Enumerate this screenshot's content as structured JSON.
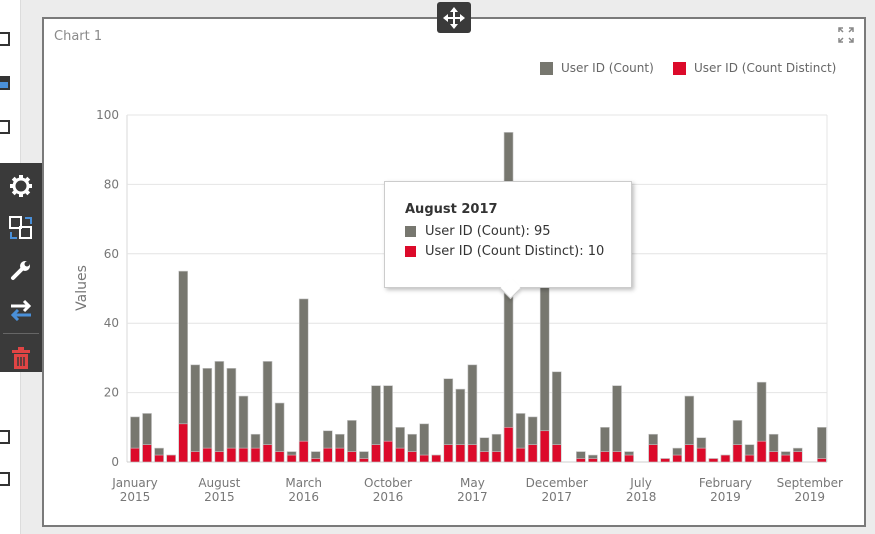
{
  "chart_title": "Chart 1",
  "colors": {
    "count": "#77776f",
    "distinct": "#dc0a2a"
  },
  "chart_data": {
    "type": "bar",
    "title": "Chart 1",
    "xlabel": "",
    "ylabel": "Values",
    "ylim": [
      0,
      100
    ],
    "yticks": [
      "0",
      "20",
      "40",
      "60",
      "80",
      "100"
    ],
    "ytick_values": [
      0,
      20,
      40,
      60,
      80,
      100
    ],
    "grid": true,
    "legend_position": "top-right",
    "xtick_labels": [
      {
        "month_index": 0,
        "line1": "January",
        "line2": "2015"
      },
      {
        "month_index": 7,
        "line1": "August",
        "line2": "2015"
      },
      {
        "month_index": 14,
        "line1": "March",
        "line2": "2016"
      },
      {
        "month_index": 21,
        "line1": "October",
        "line2": "2016"
      },
      {
        "month_index": 28,
        "line1": "May",
        "line2": "2017"
      },
      {
        "month_index": 35,
        "line1": "December",
        "line2": "2017"
      },
      {
        "month_index": 42,
        "line1": "July",
        "line2": "2018"
      },
      {
        "month_index": 49,
        "line1": "February",
        "line2": "2019"
      },
      {
        "month_index": 56,
        "line1": "September",
        "line2": "2019"
      }
    ],
    "categories": [
      "2015-01",
      "2015-02",
      "2015-03",
      "2015-04",
      "2015-05",
      "2015-06",
      "2015-07",
      "2015-08",
      "2015-09",
      "2015-10",
      "2015-11",
      "2015-12",
      "2016-01",
      "2016-02",
      "2016-03",
      "2016-04",
      "2016-05",
      "2016-06",
      "2016-07",
      "2016-08",
      "2016-09",
      "2016-10",
      "2016-11",
      "2016-12",
      "2017-01",
      "2017-02",
      "2017-03",
      "2017-04",
      "2017-05",
      "2017-06",
      "2017-07",
      "2017-08",
      "2017-09",
      "2017-10",
      "2017-11",
      "2017-12",
      "2018-01",
      "2018-02",
      "2018-03",
      "2018-04",
      "2018-05",
      "2018-06",
      "2018-07",
      "2018-08",
      "2018-09",
      "2018-10",
      "2018-11",
      "2018-12",
      "2019-01",
      "2019-02",
      "2019-03",
      "2019-04",
      "2019-05",
      "2019-06",
      "2019-07",
      "2019-08",
      "2019-09",
      "2019-10"
    ],
    "series": [
      {
        "name": "User ID (Count)",
        "values": [
          13,
          14,
          4,
          2,
          55,
          28,
          27,
          29,
          27,
          19,
          8,
          29,
          17,
          3,
          47,
          3,
          9,
          8,
          12,
          3,
          22,
          22,
          10,
          8,
          11,
          2,
          24,
          21,
          28,
          7,
          8,
          95,
          14,
          13,
          58,
          26,
          null,
          3,
          2,
          10,
          22,
          3,
          null,
          8,
          1,
          4,
          19,
          7,
          1,
          2,
          12,
          5,
          23,
          8,
          3,
          4,
          null,
          10
        ]
      },
      {
        "name": "User ID (Count Distinct)",
        "values": [
          4,
          5,
          2,
          2,
          11,
          3,
          4,
          3,
          4,
          4,
          4,
          5,
          3,
          2,
          6,
          1,
          4,
          4,
          3,
          1,
          5,
          6,
          4,
          3,
          2,
          2,
          5,
          5,
          5,
          3,
          3,
          10,
          4,
          5,
          9,
          5,
          null,
          1,
          1,
          3,
          3,
          2,
          null,
          5,
          1,
          2,
          5,
          4,
          1,
          2,
          5,
          2,
          6,
          3,
          2,
          3,
          null,
          1
        ]
      }
    ]
  },
  "tooltip": {
    "title": "August 2017",
    "rows": [
      {
        "label": "User ID (Count): 95"
      },
      {
        "label": "User ID (Count Distinct): 10"
      }
    ]
  }
}
